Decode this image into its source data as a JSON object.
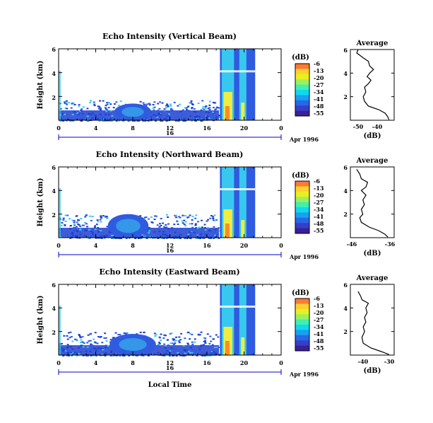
{
  "colors": {
    "cbar": [
      "#ff7a30",
      "#ffd030",
      "#e8f020",
      "#9cf060",
      "#40f0b0",
      "#10d8f0",
      "#1aa0f0",
      "#2868e8",
      "#3540c8",
      "#3a1f99"
    ],
    "noise": "#1f3fd0",
    "blue": "#2f5be0",
    "cyan": "#38c8ef",
    "orange": "#ff8a2a",
    "yellow": "#f0ec40",
    "axis_blue": "#0000cc"
  },
  "chart_data": [
    {
      "type": "heatmap",
      "title": "Echo Intensity (Vertical Beam)",
      "ylabel": "Height (km)",
      "yticks": [
        "2",
        "4",
        "6"
      ],
      "xticks": [
        "0",
        "4",
        "8",
        "12",
        "16",
        "20",
        "0"
      ],
      "xlim": [
        0,
        24
      ],
      "ylim": [
        0,
        6
      ],
      "date_tick": "16",
      "date_label": "Apr 1996",
      "colorbar": {
        "unit": "(dB)",
        "ticks": [
          "-6",
          "-13",
          "-20",
          "-27",
          "-34",
          "-41",
          "-48",
          "-55"
        ]
      },
      "features": [
        {
          "kind": "noise",
          "x0": 0,
          "x1": 17.3,
          "top": 1.7
        },
        {
          "kind": "blob",
          "x": 8,
          "y": 0.7,
          "rx": 2.0,
          "ry": 0.7
        },
        {
          "kind": "rain",
          "x0": 17.4,
          "x1": 21.2,
          "top": 6
        }
      ],
      "profile": {
        "title": "Average",
        "xlabel": "(dB)",
        "xticks": [
          "-50",
          "-40"
        ],
        "xlim": [
          -52,
          -35
        ],
        "yticks": [
          "2",
          "4",
          "6"
        ],
        "ylim": [
          0,
          6
        ],
        "x": [
          -37,
          -37.5,
          -38.5,
          -41,
          -45,
          -46.5,
          -47,
          -46,
          -46.5,
          -45,
          -44,
          -45.5,
          -44.5,
          -43,
          -44.5,
          -45,
          -47,
          -49.5,
          -49
        ],
        "y": [
          0.05,
          0.3,
          0.6,
          0.9,
          1.2,
          1.6,
          2.0,
          2.4,
          2.8,
          3.1,
          3.4,
          3.7,
          4.0,
          4.3,
          4.6,
          5.0,
          5.3,
          5.7,
          6.0
        ]
      }
    },
    {
      "type": "heatmap",
      "title": "Echo Intensity (Northward Beam)",
      "ylabel": "Height (km)",
      "yticks": [
        "2",
        "4",
        "6"
      ],
      "xticks": [
        "0",
        "4",
        "8",
        "12",
        "16",
        "20",
        "0"
      ],
      "xlim": [
        0,
        24
      ],
      "ylim": [
        0,
        6
      ],
      "date_tick": "16",
      "date_label": "Apr 1996",
      "colorbar": {
        "unit": "(dB)",
        "ticks": [
          "-6",
          "-13",
          "-20",
          "-27",
          "-34",
          "-41",
          "-48",
          "-55"
        ]
      },
      "features": [
        {
          "kind": "noise",
          "x0": 0,
          "x1": 17.3,
          "top": 2.0
        },
        {
          "kind": "blob",
          "x": 7.5,
          "y": 1.0,
          "rx": 2.2,
          "ry": 1.0
        },
        {
          "kind": "rain",
          "x0": 17.4,
          "x1": 21.2,
          "top": 6
        }
      ],
      "profile": {
        "title": "Average",
        "xlabel": "(dB)",
        "xticks": [
          "-46",
          "-36"
        ],
        "xlim": [
          -48,
          -34
        ],
        "yticks": [
          "2",
          "4",
          "6"
        ],
        "ylim": [
          0,
          6
        ],
        "x": [
          -36,
          -37,
          -39,
          -42,
          -44.5,
          -45,
          -44,
          -44.5,
          -43.5,
          -44,
          -43,
          -44.5,
          -43,
          -42.5,
          -44.5,
          -45,
          -46
        ],
        "y": [
          0.05,
          0.3,
          0.6,
          0.9,
          1.3,
          1.7,
          2.0,
          2.4,
          2.8,
          3.2,
          3.6,
          4.0,
          4.3,
          4.7,
          5.0,
          5.4,
          5.8
        ]
      }
    },
    {
      "type": "heatmap",
      "title": "Echo Intensity (Eastward Beam)",
      "ylabel": "Height (km)",
      "yticks": [
        "2",
        "4",
        "6"
      ],
      "xticks": [
        "0",
        "4",
        "8",
        "12",
        "16",
        "20",
        "0"
      ],
      "xlim": [
        0,
        24
      ],
      "ylim": [
        0,
        6
      ],
      "date_tick": "16",
      "date_label": "Apr 1996",
      "xlabel": "Local Time",
      "colorbar": {
        "unit": "(dB)",
        "ticks": [
          "-6",
          "-13",
          "-20",
          "-27",
          "-34",
          "-41",
          "-48",
          "-55"
        ]
      },
      "features": [
        {
          "kind": "noise",
          "x0": 0,
          "x1": 17.3,
          "top": 2.0
        },
        {
          "kind": "blob",
          "x": 8,
          "y": 0.9,
          "rx": 2.5,
          "ry": 0.9
        },
        {
          "kind": "rain",
          "x0": 17.4,
          "x1": 21.2,
          "top": 6
        }
      ],
      "profile": {
        "title": "Average",
        "xlabel": "(dB)",
        "xticks": [
          "-40",
          "-30"
        ],
        "xlim": [
          -45,
          -28
        ],
        "yticks": [
          "2",
          "4",
          "6"
        ],
        "ylim": [
          0,
          6
        ],
        "x": [
          -30,
          -33,
          -37,
          -40,
          -40.5,
          -39.5,
          -40,
          -39,
          -39.5,
          -38.5,
          -39,
          -38,
          -40.5,
          -41,
          -42
        ],
        "y": [
          0.05,
          0.3,
          0.6,
          1.0,
          1.5,
          2.0,
          2.4,
          2.8,
          3.2,
          3.6,
          4.0,
          4.4,
          4.7,
          5.0,
          5.4
        ]
      }
    }
  ]
}
